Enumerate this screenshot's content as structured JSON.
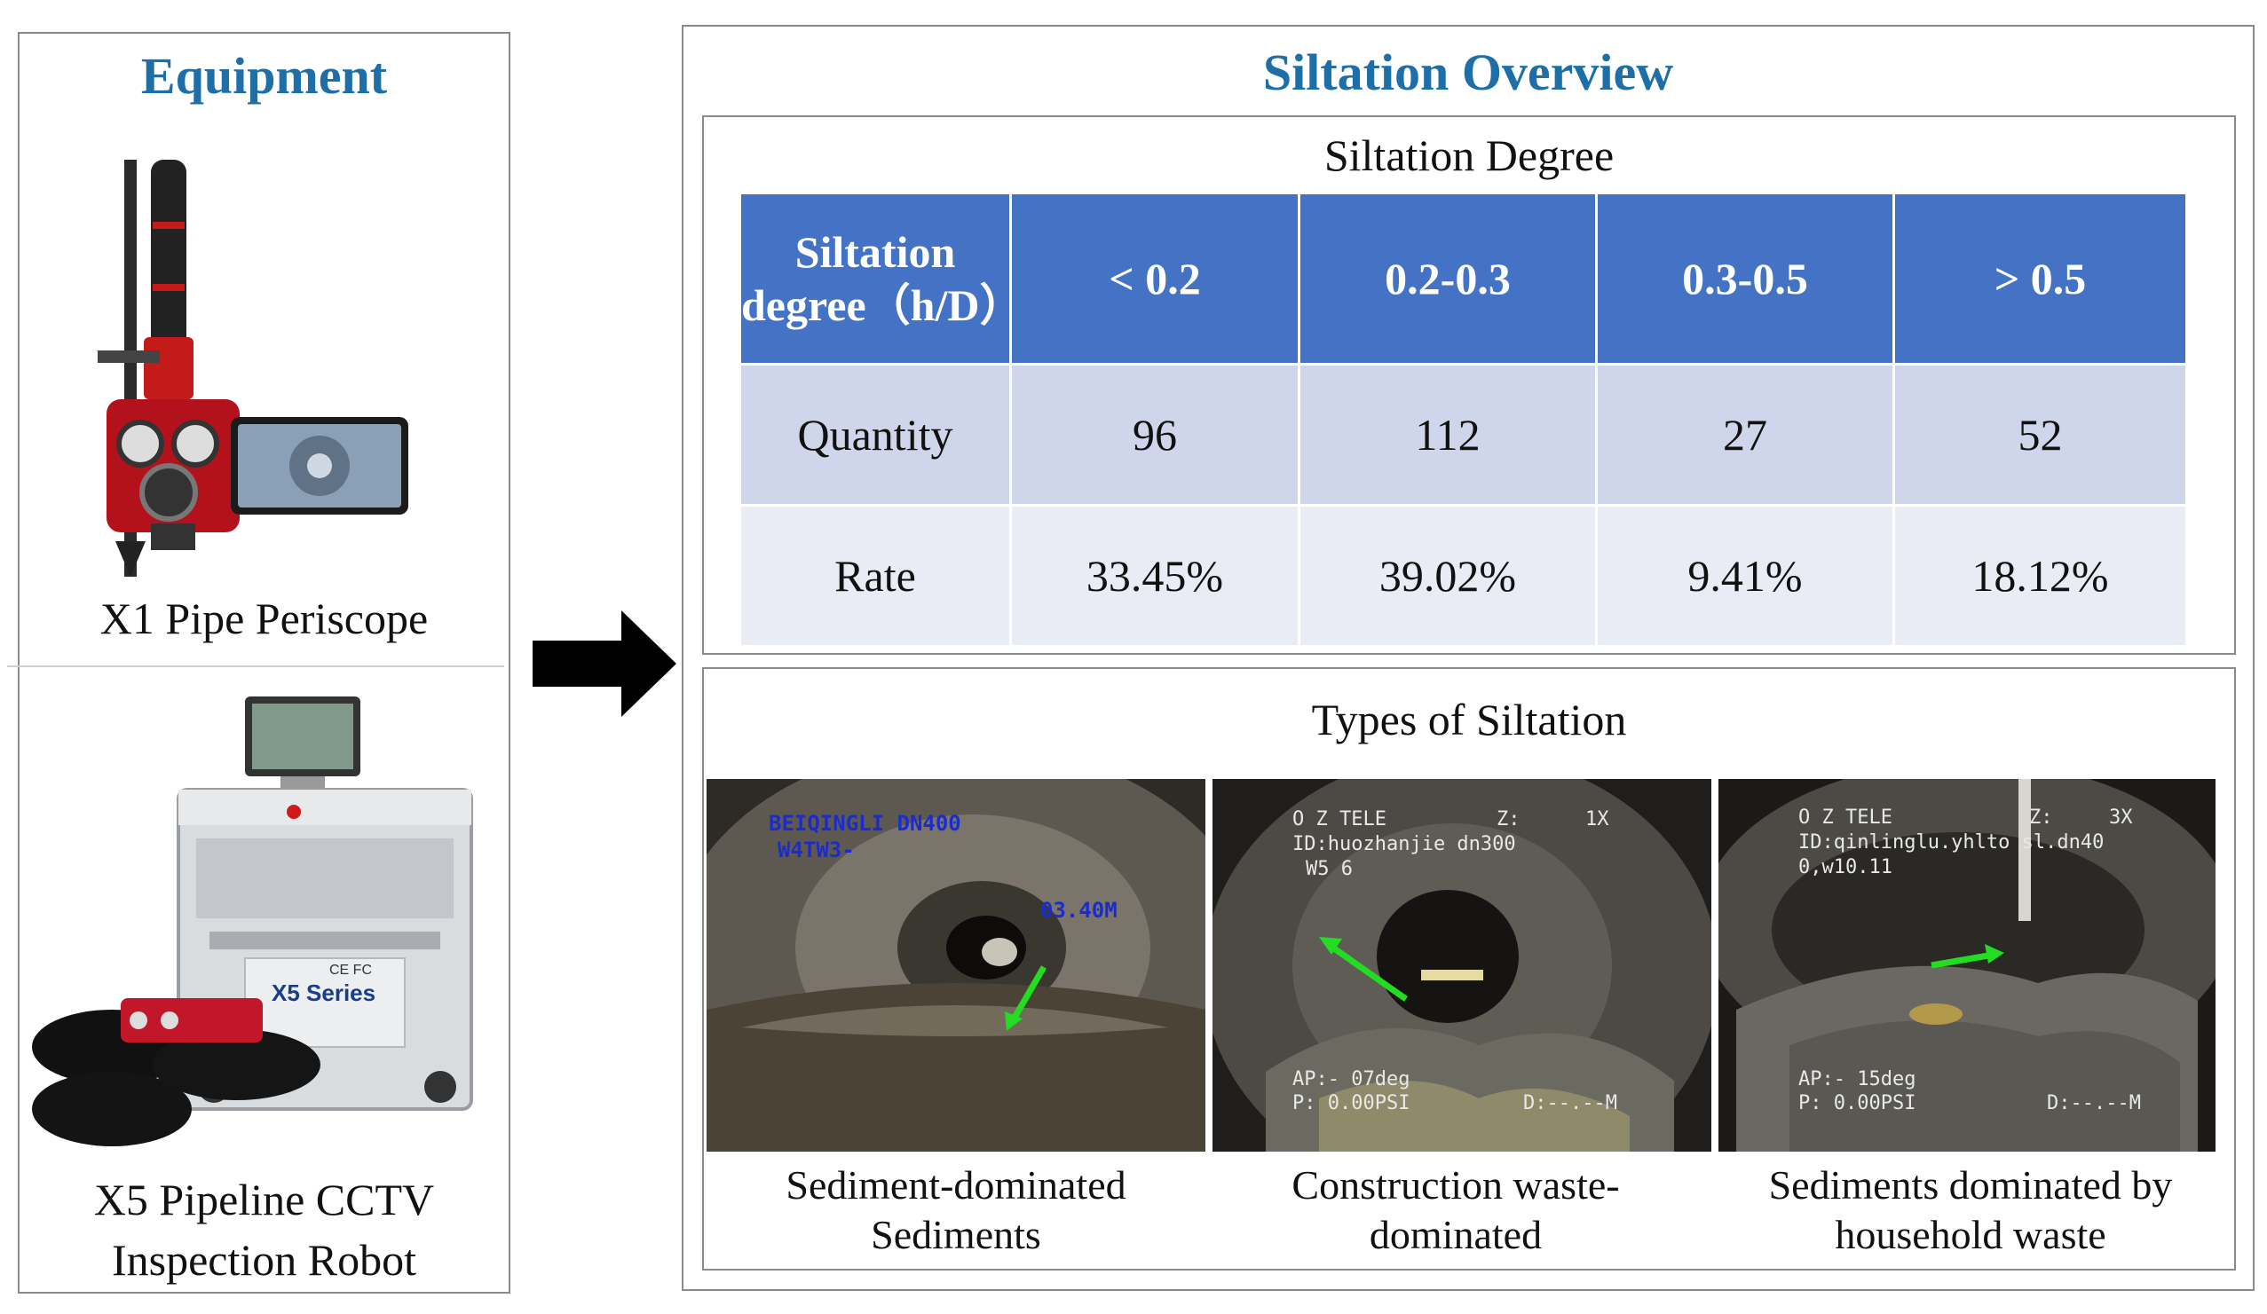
{
  "equipment": {
    "title": "Equipment",
    "items": [
      {
        "label": "X1 Pipe Periscope"
      },
      {
        "label": "X5 Pipeline CCTV Inspection Robot"
      }
    ],
    "robot_brand": "X5 Series",
    "robot_marks": "CE FC"
  },
  "overview": {
    "title": "Siltation Overview",
    "degree": {
      "title": "Siltation Degree",
      "header_label": "Siltation degree（h/D）",
      "columns": [
        "< 0.2",
        "0.2-0.3",
        "0.3-0.5",
        "> 0.5"
      ],
      "rows": [
        {
          "label": "Quantity",
          "values": [
            "96",
            "112",
            "27",
            "52"
          ]
        },
        {
          "label": "Rate",
          "values": [
            "33.45%",
            "39.02%",
            "9.41%",
            "18.12%"
          ]
        }
      ]
    },
    "types": {
      "title": "Types of Siltation",
      "items": [
        {
          "caption": "Sediment-dominated Sediments",
          "overlay": [
            "BEIQINGLI      DN400",
            "W4TW3-",
            "03.40M"
          ]
        },
        {
          "caption": "Construction waste-dominated",
          "overlay": [
            "O Z TELE",
            "Z:",
            "1X",
            "ID:huozhanjie dn300",
            "W5 6",
            "AP:- 07deg",
            "P: 0.00PSI",
            "D:--.--M"
          ]
        },
        {
          "caption": "Sediments dominated by household waste",
          "overlay": [
            "O Z TELE",
            "Z:",
            "3X",
            "ID:qinlinglu.yhlto sl.dn40",
            "0,w10.11",
            "AP:- 15deg",
            "P: 0.00PSI",
            "D:--.--M"
          ]
        }
      ]
    }
  },
  "colors": {
    "title_blue": "#1e6fa8",
    "table_header": "#4472c4",
    "table_row_1": "#cfd5ea",
    "table_row_2": "#e9ebf5",
    "indicator_arrow": "#22dd22"
  }
}
